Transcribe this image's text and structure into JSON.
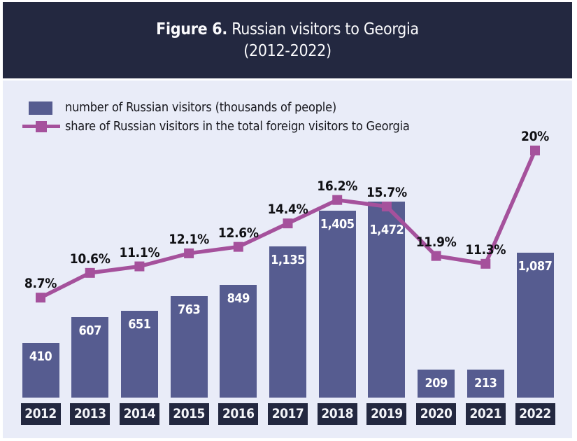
{
  "header": {
    "title_prefix": "Figure 6.",
    "title_rest": " Russian visitors to Georgia",
    "subtitle": "(2012-2022)"
  },
  "legend": {
    "bar_label": "number of Russian visitors (thousands of people)",
    "line_label": "share of Russian visitors in the total foreign visitors to Georgia"
  },
  "chart_data": {
    "type": "combo",
    "title": "Figure 6. Russian visitors to Georgia (2012-2022)",
    "categories": [
      "2012",
      "2013",
      "2014",
      "2015",
      "2016",
      "2017",
      "2018",
      "2019",
      "2020",
      "2021",
      "2022"
    ],
    "series": [
      {
        "name": "number of Russian visitors (thousands of people)",
        "type": "bar",
        "values": [
          410,
          607,
          651,
          763,
          849,
          1135,
          1405,
          1472,
          209,
          213,
          1087
        ],
        "labels": [
          "410",
          "607",
          "651",
          "763",
          "849",
          "1,135",
          "1,405",
          "1,472",
          "209",
          "213",
          "1,087"
        ],
        "color": "#565c90"
      },
      {
        "name": "share of Russian visitors in the total foreign visitors to Georgia",
        "type": "line",
        "values": [
          8.7,
          10.6,
          11.1,
          12.1,
          12.6,
          14.4,
          16.2,
          15.7,
          11.9,
          11.3,
          20
        ],
        "labels": [
          "8.7%",
          "10.6%",
          "11.1%",
          "12.1%",
          "12.6%",
          "14.4%",
          "16.2%",
          "15.7%",
          "11.9%",
          "11.3%",
          "20%"
        ],
        "color": "#a5519c"
      }
    ],
    "bar_ylim": [
      0,
      2384
    ],
    "line_ylim": [
      1,
      25.4
    ],
    "grid": false,
    "legend_position": "top-left",
    "value_labels": "inside-bar-top",
    "pct_labels": "above-marker"
  },
  "colors": {
    "page_bg": "#ffffff",
    "header_bg": "#232840",
    "chart_bg": "#e9ecf8",
    "bar": "#565c90",
    "line": "#a5519c",
    "year_box_bg": "#232840",
    "title_text": "#fbfbfd",
    "bar_value_text": "#ffffff",
    "pct_label_text": "#101014"
  }
}
